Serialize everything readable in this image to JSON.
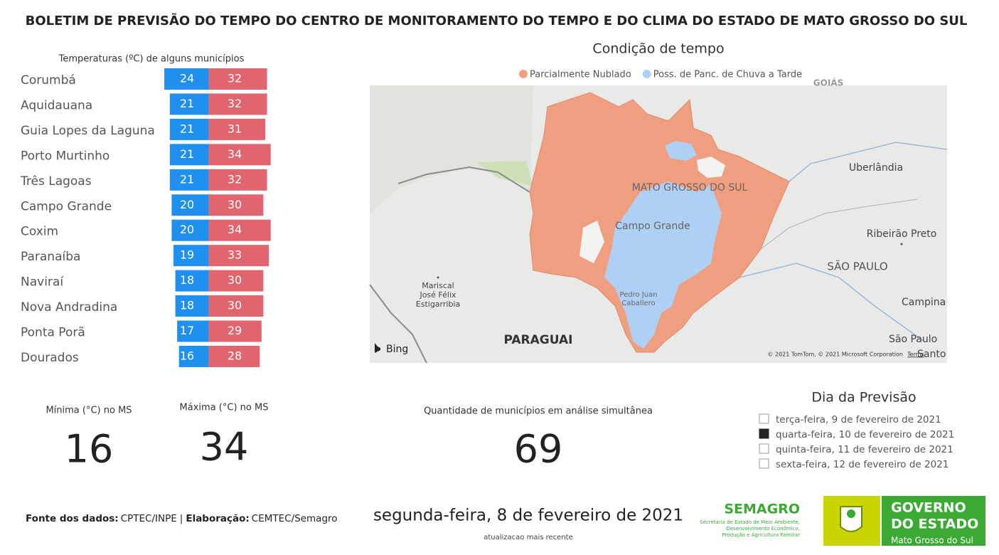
{
  "header": {
    "title": "BOLETIM DE PREVISÃO DO TEMPO DO CENTRO DE MONITORAMENTO DO TEMPO E DO CLIMA DO ESTADO DE MATO GROSSO DO SUL"
  },
  "temperatures": {
    "title": "Temperaturas (ºC) de alguns municípios",
    "categories": [
      "Corumbá",
      "Aquidauana",
      "Guia Lopes da Laguna",
      "Porto Murtinho",
      "Três Lagoas",
      "Campo Grande",
      "Coxim",
      "Paranaíba",
      "Naviraí",
      "Nova Andradina",
      "Ponta Porã",
      "Dourados"
    ],
    "series": [
      {
        "color": "#1f8ff0",
        "values": [
          24,
          21,
          21,
          21,
          21,
          20,
          20,
          19,
          18,
          18,
          17,
          16
        ]
      },
      {
        "color": "#e0656f",
        "values": [
          32,
          32,
          31,
          34,
          32,
          30,
          34,
          33,
          30,
          30,
          29,
          28
        ]
      }
    ]
  },
  "map": {
    "title": "Condição de tempo",
    "legend": [
      {
        "name": "Parcialmente Nublado",
        "color": "#ef9f80"
      },
      {
        "name": "Poss. de Panc. de Chuva a Tarde",
        "color": "#aed0f5"
      }
    ],
    "labels": {
      "state": "MATO GROSSO DO SUL",
      "capital": "Campo Grande",
      "uberlandia": "Uberlândia",
      "ribeirao": "Ribeirão Preto",
      "sp_state": "SÃO PAULO",
      "campinas": "Campina",
      "sp_city": "São Paulo",
      "santos": "Santo",
      "mariscal": [
        "Mariscal",
        "José Félix",
        "Estigarribia"
      ],
      "pedro": [
        "Pedro Juan",
        "Caballero"
      ],
      "paraguay": "PARAGUAI",
      "goias": "GOIÁS"
    },
    "provider": "Bing",
    "copyright": "© 2021 TomTom, © 2021 Microsoft Corporation",
    "terms": "Terms"
  },
  "kpis": [
    {
      "label": "Mínima (°C) no MS",
      "value": "16"
    },
    {
      "label": "Máxima (°C) no MS",
      "value": "34"
    },
    {
      "label": "Quantidade de municípios em análise simultânea",
      "value": "69"
    }
  ],
  "slicer": {
    "title": "Dia da Previsão",
    "items": [
      {
        "label": "terça-feira, 9 de fevereiro de 2021",
        "checked": false
      },
      {
        "label": "quarta-feira, 10 de fevereiro de 2021",
        "checked": true
      },
      {
        "label": "quinta-feira, 11 de fevereiro de 2021",
        "checked": false
      },
      {
        "label": "sexta-feira, 12 de fevereiro de 2021",
        "checked": false
      }
    ]
  },
  "footer": {
    "source_label": "Fonte dos dados:",
    "source": "CPTEC/INPE",
    "separator": "|",
    "made_label": "Elaboração:",
    "made": "CEMTEC/Semagro",
    "date": "segunda-feira, 8 de fevereiro de 2021",
    "date_note": "atualizacao mais recente"
  },
  "logos": {
    "semagro": "SEMAGRO",
    "semagro_lines": [
      "Secretaria de Estado de Meio Ambiente,",
      "Desenvolvimento Econômico,",
      "Produção e Agricultura Familiar"
    ],
    "gov_lines": [
      "GOVERNO",
      "DO ESTADO"
    ],
    "gov_state": "Mato Grosso do Sul"
  }
}
